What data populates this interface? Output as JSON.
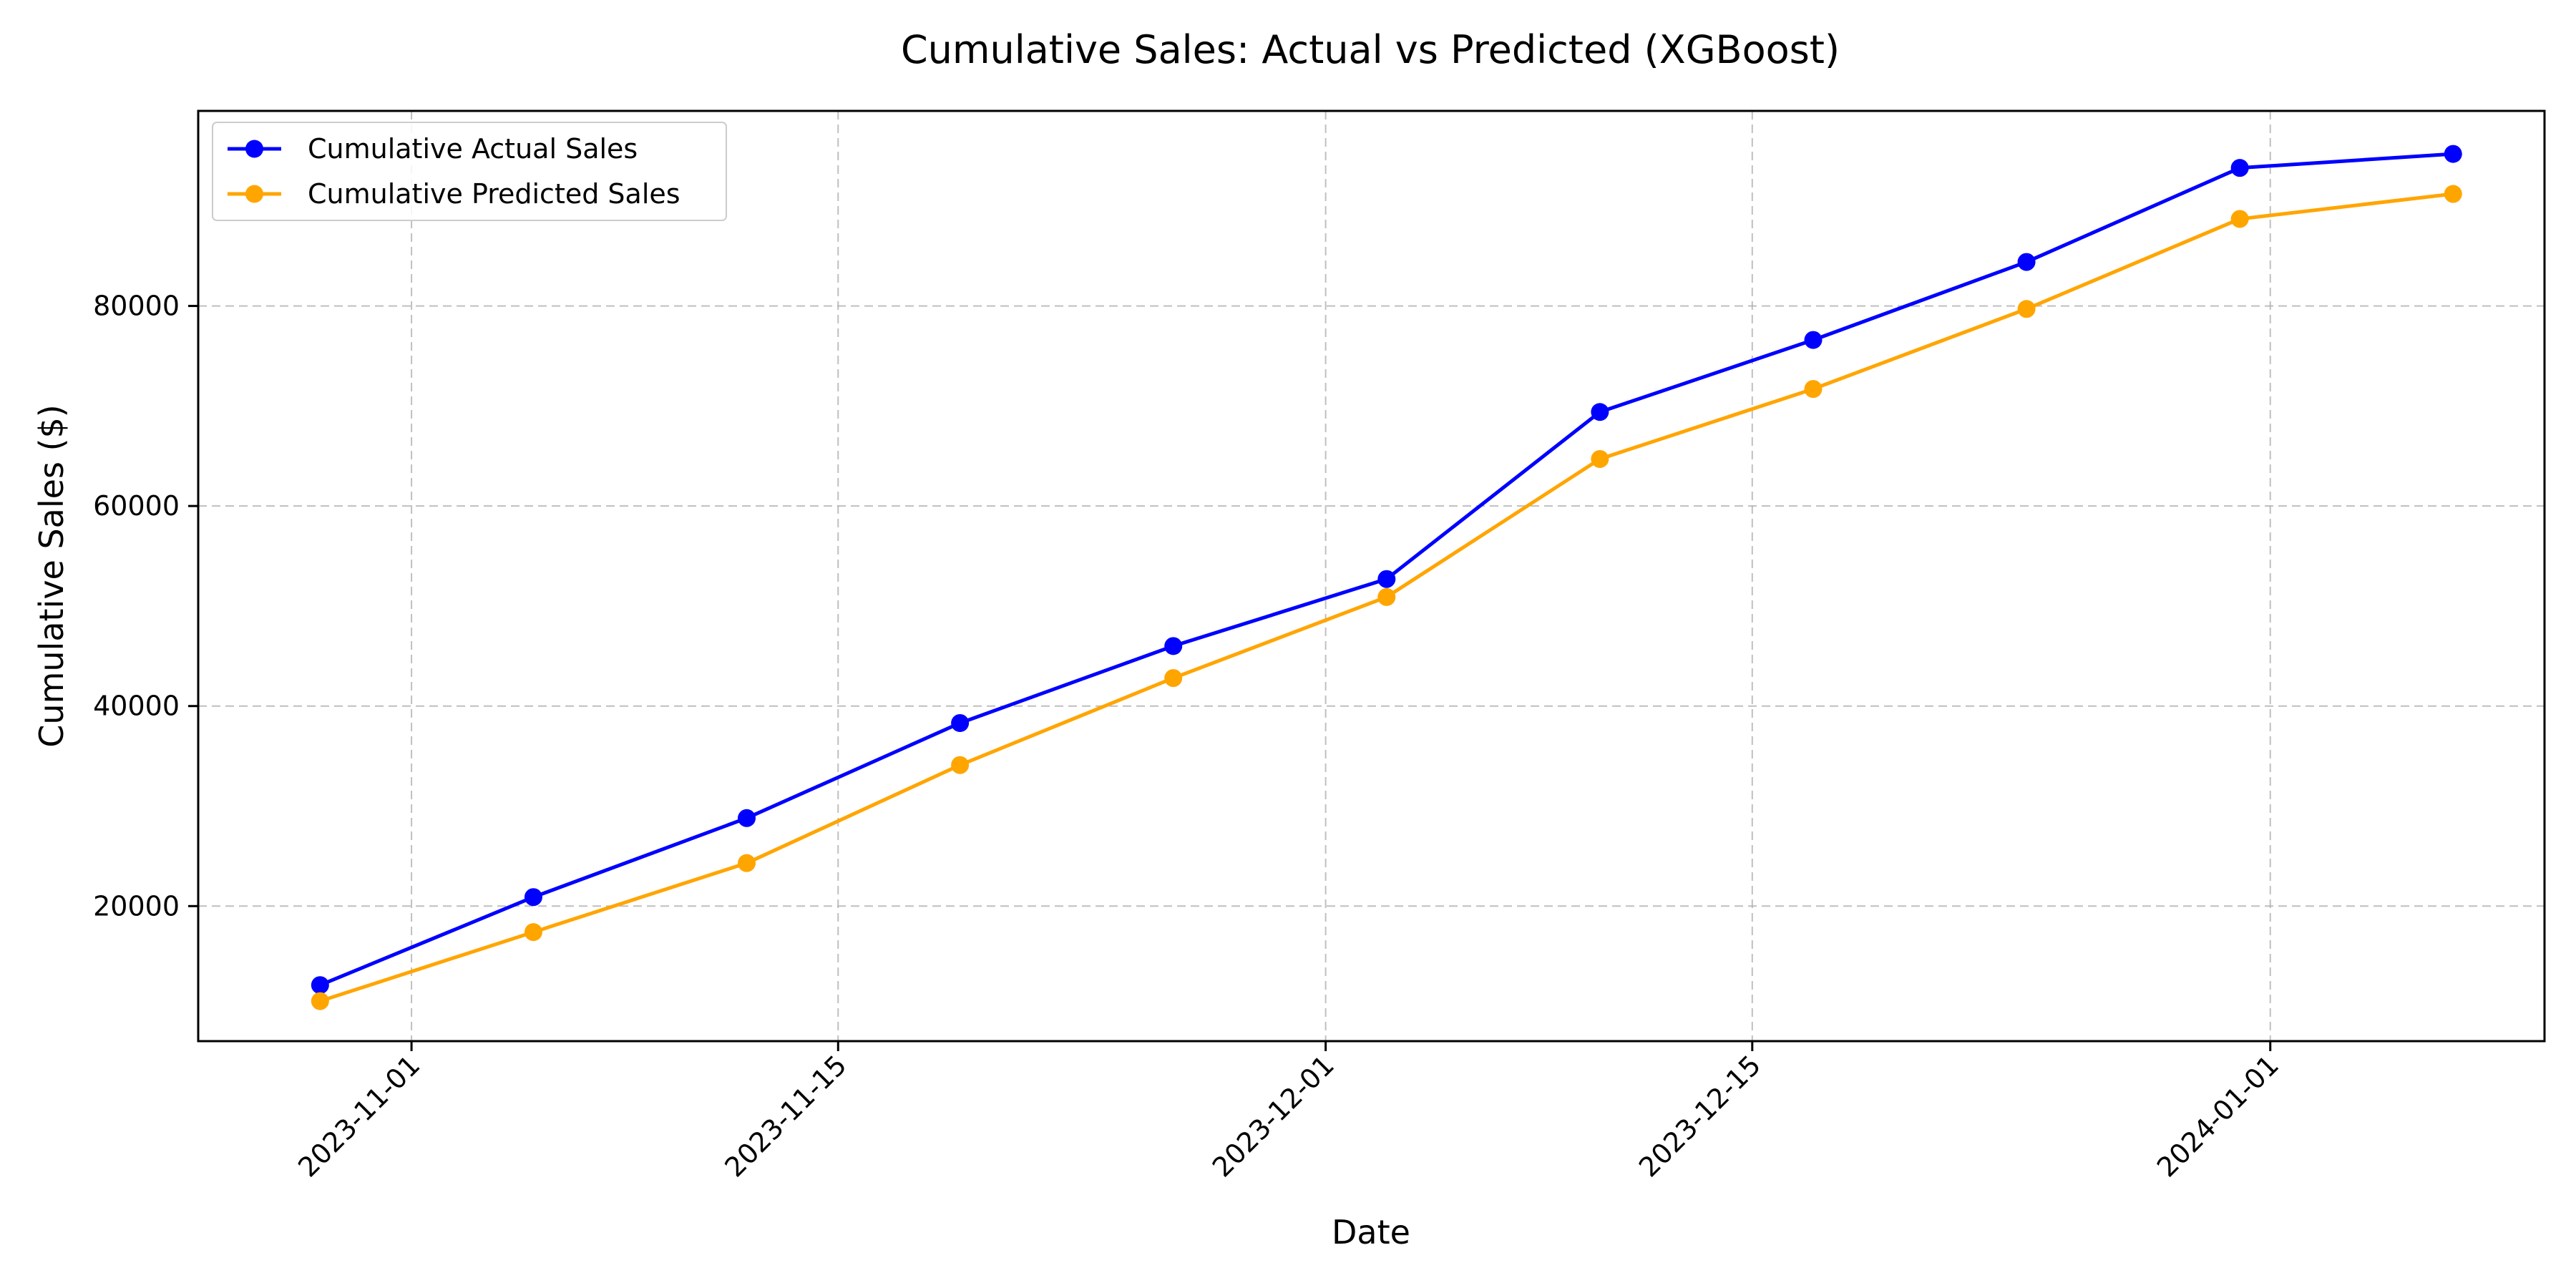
{
  "chart_data": {
    "type": "line",
    "title": "Cumulative Sales: Actual vs Predicted (XGBoost)",
    "xlabel": "Date",
    "ylabel": "Cumulative Sales ($)",
    "x": [
      "2023-10-29",
      "2023-11-05",
      "2023-11-12",
      "2023-11-19",
      "2023-11-26",
      "2023-12-03",
      "2023-12-10",
      "2023-12-17",
      "2023-12-24",
      "2023-12-31",
      "2024-01-07"
    ],
    "series": [
      {
        "name": "Cumulative Actual Sales",
        "color": "#0000ff",
        "values": [
          12100,
          20900,
          28800,
          38300,
          46000,
          52700,
          69400,
          76600,
          84400,
          93800,
          95200
        ]
      },
      {
        "name": "Cumulative Predicted Sales",
        "color": "#ffa500",
        "values": [
          10500,
          17400,
          24300,
          34100,
          42800,
          50900,
          64700,
          71700,
          79700,
          88700,
          91200
        ]
      }
    ],
    "xticks": [
      "2023-11-01",
      "2023-11-15",
      "2023-12-01",
      "2023-12-15",
      "2024-01-01"
    ],
    "xlim": [
      "2023-10-25",
      "2024-01-10"
    ],
    "yticks": [
      20000,
      40000,
      60000,
      80000
    ],
    "ylim": [
      6500,
      99500
    ],
    "grid": true,
    "legend_position": "top-left",
    "marker": "circle"
  }
}
